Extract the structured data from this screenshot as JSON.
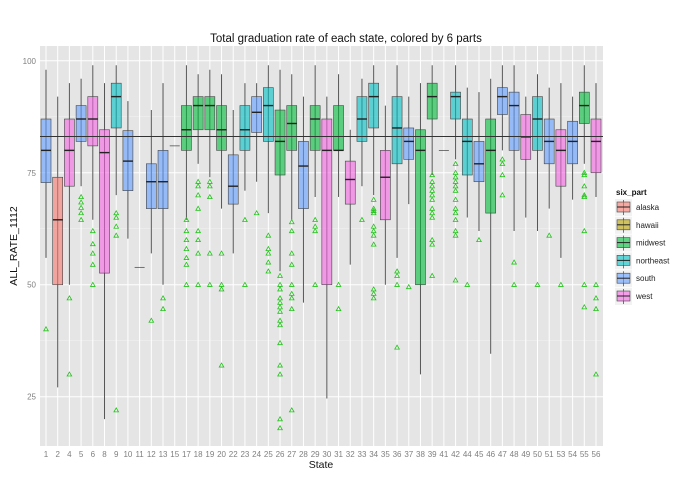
{
  "chart_data": {
    "type": "boxplot",
    "title": "Total graduation rate of each state, colored by 6 parts",
    "xlabel": "State",
    "ylabel": "ALL_RATE_1112",
    "ylim": [
      14,
      103.3
    ],
    "yticks": [
      25,
      50,
      75,
      100
    ],
    "grid": true,
    "reference_line": 83.1,
    "legend": {
      "title": "six_part",
      "position": "right",
      "entries": [
        "alaska",
        "hawaii",
        "midwest",
        "northeast",
        "south",
        "west"
      ]
    },
    "colors": {
      "alaska": "#F8766D",
      "hawaii": "#B79F00",
      "midwest": "#00BA38",
      "northeast": "#00BFC4",
      "south": "#619CFF",
      "west": "#F564E3"
    },
    "outlier_color": "#22c41a",
    "outlier_shape": "open-triangle",
    "states": [
      {
        "state": "1",
        "part": "south",
        "lo": 56,
        "q1": 72.8,
        "med": 80,
        "q3": 87,
        "hi": 98,
        "out": [
          40.1
        ]
      },
      {
        "state": "2",
        "part": "alaska",
        "lo": 27.1,
        "q1": 50,
        "med": 64.5,
        "q3": 74,
        "hi": 92,
        "out": []
      },
      {
        "state": "4",
        "part": "west",
        "lo": 50,
        "q1": 72,
        "med": 80,
        "q3": 87,
        "hi": 95,
        "out": [
          47,
          30
        ]
      },
      {
        "state": "5",
        "part": "south",
        "lo": 72,
        "q1": 82,
        "med": 87,
        "q3": 90,
        "hi": 96,
        "out": [
          69.6,
          68.4,
          67.2,
          66,
          64.5
        ]
      },
      {
        "state": "6",
        "part": "west",
        "lo": 64.5,
        "q1": 81,
        "med": 87,
        "q3": 92,
        "hi": 99,
        "out": [
          62,
          59.1,
          57,
          54.5,
          50
        ]
      },
      {
        "state": "8",
        "part": "west",
        "lo": 20,
        "q1": 52.6,
        "med": 79.5,
        "q3": 84.6,
        "hi": 95,
        "out": []
      },
      {
        "state": "9",
        "part": "northeast",
        "lo": 70,
        "q1": 85,
        "med": 92,
        "q3": 95,
        "hi": 99,
        "out": [
          66,
          65,
          63,
          61,
          22
        ]
      },
      {
        "state": "10",
        "part": "south",
        "lo": 60.3,
        "q1": 71,
        "med": 77.6,
        "q3": 84.4,
        "hi": 91,
        "out": []
      },
      {
        "state": "11",
        "part": "south",
        "lo": 53.9,
        "q1": 53.9,
        "med": 53.9,
        "q3": 53.9,
        "hi": 53.9,
        "out": []
      },
      {
        "state": "12",
        "part": "south",
        "lo": 57,
        "q1": 67,
        "med": 73,
        "q3": 77,
        "hi": 89,
        "out": [
          42
        ]
      },
      {
        "state": "13",
        "part": "south",
        "lo": 50,
        "q1": 67,
        "med": 73,
        "q3": 80,
        "hi": 95,
        "out": [
          47,
          44.6
        ]
      },
      {
        "state": "15",
        "part": "hawaii",
        "lo": 81,
        "q1": 81,
        "med": 81,
        "q3": 81,
        "hi": 81,
        "out": []
      },
      {
        "state": "17",
        "part": "midwest",
        "lo": 64.5,
        "q1": 80,
        "med": 84.6,
        "q3": 90,
        "hi": 99,
        "out": [
          64.5,
          62,
          60,
          58,
          56,
          54.5,
          50
        ]
      },
      {
        "state": "18",
        "part": "midwest",
        "lo": 77,
        "q1": 84.6,
        "med": 90,
        "q3": 92,
        "hi": 97,
        "out": [
          73,
          72,
          70,
          67,
          62,
          60,
          57,
          50
        ]
      },
      {
        "state": "19",
        "part": "midwest",
        "lo": 74,
        "q1": 84.6,
        "med": 90,
        "q3": 92,
        "hi": 98,
        "out": [
          73,
          72,
          69.6,
          57,
          50
        ]
      },
      {
        "state": "20",
        "part": "midwest",
        "lo": 67,
        "q1": 80,
        "med": 84.6,
        "q3": 90,
        "hi": 97,
        "out": [
          57,
          50,
          49,
          32
        ]
      },
      {
        "state": "22",
        "part": "south",
        "lo": 57,
        "q1": 68,
        "med": 72,
        "q3": 79,
        "hi": 89,
        "out": []
      },
      {
        "state": "23",
        "part": "northeast",
        "lo": 71,
        "q1": 80,
        "med": 84.6,
        "q3": 90,
        "hi": 95,
        "out": [
          64.5,
          50
        ]
      },
      {
        "state": "24",
        "part": "south",
        "lo": 73,
        "q1": 84,
        "med": 88.5,
        "q3": 92,
        "hi": 95,
        "out": [
          66
        ]
      },
      {
        "state": "25",
        "part": "northeast",
        "lo": 66,
        "q1": 82,
        "med": 90,
        "q3": 94,
        "hi": 99,
        "out": [
          61,
          58,
          57,
          55,
          53
        ]
      },
      {
        "state": "26",
        "part": "midwest",
        "lo": 53,
        "q1": 74.5,
        "med": 82,
        "q3": 89,
        "hi": 98,
        "out": [
          52,
          50,
          49,
          47,
          46,
          45,
          44,
          42,
          41,
          37,
          32,
          30,
          20,
          18
        ]
      },
      {
        "state": "27",
        "part": "midwest",
        "lo": 64.5,
        "q1": 80,
        "med": 86,
        "q3": 90,
        "hi": 97,
        "out": [
          64,
          62,
          57,
          54.5,
          50,
          48,
          47,
          44.6,
          22
        ]
      },
      {
        "state": "28",
        "part": "south",
        "lo": 46,
        "q1": 67,
        "med": 76.5,
        "q3": 82,
        "hi": 92,
        "out": []
      },
      {
        "state": "29",
        "part": "midwest",
        "lo": 69.6,
        "q1": 80,
        "med": 87,
        "q3": 90,
        "hi": 99,
        "out": [
          64.5,
          63,
          62,
          50
        ]
      },
      {
        "state": "30",
        "part": "west",
        "lo": 24.6,
        "q1": 50,
        "med": 80,
        "q3": 87,
        "hi": 92,
        "out": []
      },
      {
        "state": "31",
        "part": "midwest",
        "lo": 69.6,
        "q1": 80,
        "med": 80,
        "q3": 90,
        "hi": 97,
        "out": [
          50,
          44.6
        ]
      },
      {
        "state": "32",
        "part": "west",
        "lo": 54.5,
        "q1": 68,
        "med": 73.5,
        "q3": 77.6,
        "hi": 84.6,
        "out": []
      },
      {
        "state": "33",
        "part": "northeast",
        "lo": 72,
        "q1": 82,
        "med": 87,
        "q3": 92,
        "hi": 96,
        "out": [
          64.5
        ]
      },
      {
        "state": "34",
        "part": "northeast",
        "lo": 70,
        "q1": 85,
        "med": 92,
        "q3": 95,
        "hi": 99,
        "out": [
          69,
          67,
          66.5,
          66,
          63,
          62,
          61,
          59,
          49,
          48,
          47
        ]
      },
      {
        "state": "35",
        "part": "west",
        "lo": 50,
        "q1": 64.5,
        "med": 74,
        "q3": 80,
        "hi": 90,
        "out": []
      },
      {
        "state": "36",
        "part": "northeast",
        "lo": 56,
        "q1": 77,
        "med": 85,
        "q3": 92,
        "hi": 99,
        "out": [
          53,
          52,
          50,
          36
        ]
      },
      {
        "state": "37",
        "part": "south",
        "lo": 68,
        "q1": 78,
        "med": 82,
        "q3": 85,
        "hi": 92,
        "out": [
          49.5
        ]
      },
      {
        "state": "38",
        "part": "midwest",
        "lo": 30,
        "q1": 50,
        "med": 80,
        "q3": 84.6,
        "hi": 95,
        "out": []
      },
      {
        "state": "39",
        "part": "midwest",
        "lo": 74.5,
        "q1": 87,
        "med": 92,
        "q3": 95,
        "hi": 99,
        "out": [
          74.5,
          73,
          72,
          71,
          70,
          69,
          67,
          66,
          65,
          60,
          59,
          52
        ]
      },
      {
        "state": "41",
        "part": "west",
        "lo": 80,
        "q1": 80,
        "med": 80,
        "q3": 80,
        "hi": 80,
        "out": []
      },
      {
        "state": "42",
        "part": "northeast",
        "lo": 78,
        "q1": 87,
        "med": 92,
        "q3": 93,
        "hi": 99,
        "out": [
          77,
          75,
          74,
          73,
          72,
          71,
          69,
          67,
          66,
          64.5,
          62,
          61,
          51
        ]
      },
      {
        "state": "44",
        "part": "northeast",
        "lo": 65,
        "q1": 74.5,
        "med": 82,
        "q3": 87,
        "hi": 94,
        "out": [
          50
        ]
      },
      {
        "state": "45",
        "part": "south",
        "lo": 62,
        "q1": 73,
        "med": 77,
        "q3": 82,
        "hi": 93,
        "out": [
          60
        ]
      },
      {
        "state": "46",
        "part": "midwest",
        "lo": 34.6,
        "q1": 66,
        "med": 80,
        "q3": 87,
        "hi": 96,
        "out": []
      },
      {
        "state": "47",
        "part": "south",
        "lo": 80,
        "q1": 88,
        "med": 92,
        "q3": 94,
        "hi": 99,
        "out": [
          78,
          77,
          74.5,
          70
        ]
      },
      {
        "state": "48",
        "part": "south",
        "lo": 62,
        "q1": 80,
        "med": 90,
        "q3": 93,
        "hi": 99,
        "out": [
          55,
          50
        ]
      },
      {
        "state": "49",
        "part": "west",
        "lo": 65,
        "q1": 78,
        "med": 83,
        "q3": 88,
        "hi": 92,
        "out": []
      },
      {
        "state": "50",
        "part": "northeast",
        "lo": 62,
        "q1": 80,
        "med": 87,
        "q3": 92,
        "hi": 97,
        "out": [
          50
        ]
      },
      {
        "state": "51",
        "part": "south",
        "lo": 67,
        "q1": 77,
        "med": 82,
        "q3": 87,
        "hi": 94,
        "out": [
          61
        ]
      },
      {
        "state": "53",
        "part": "west",
        "lo": 56,
        "q1": 72,
        "med": 80,
        "q3": 84.6,
        "hi": 95,
        "out": [
          50
        ]
      },
      {
        "state": "54",
        "part": "south",
        "lo": 69,
        "q1": 77,
        "med": 82,
        "q3": 86.5,
        "hi": 92,
        "out": []
      },
      {
        "state": "55",
        "part": "midwest",
        "lo": 77,
        "q1": 86,
        "med": 90,
        "q3": 93,
        "hi": 99,
        "out": [
          75,
          74.5,
          72,
          70,
          69.6,
          62,
          50,
          45
        ]
      },
      {
        "state": "56",
        "part": "west",
        "lo": 69.6,
        "q1": 75,
        "med": 82,
        "q3": 87,
        "hi": 95,
        "out": [
          50,
          47,
          44.6,
          30
        ]
      }
    ]
  }
}
